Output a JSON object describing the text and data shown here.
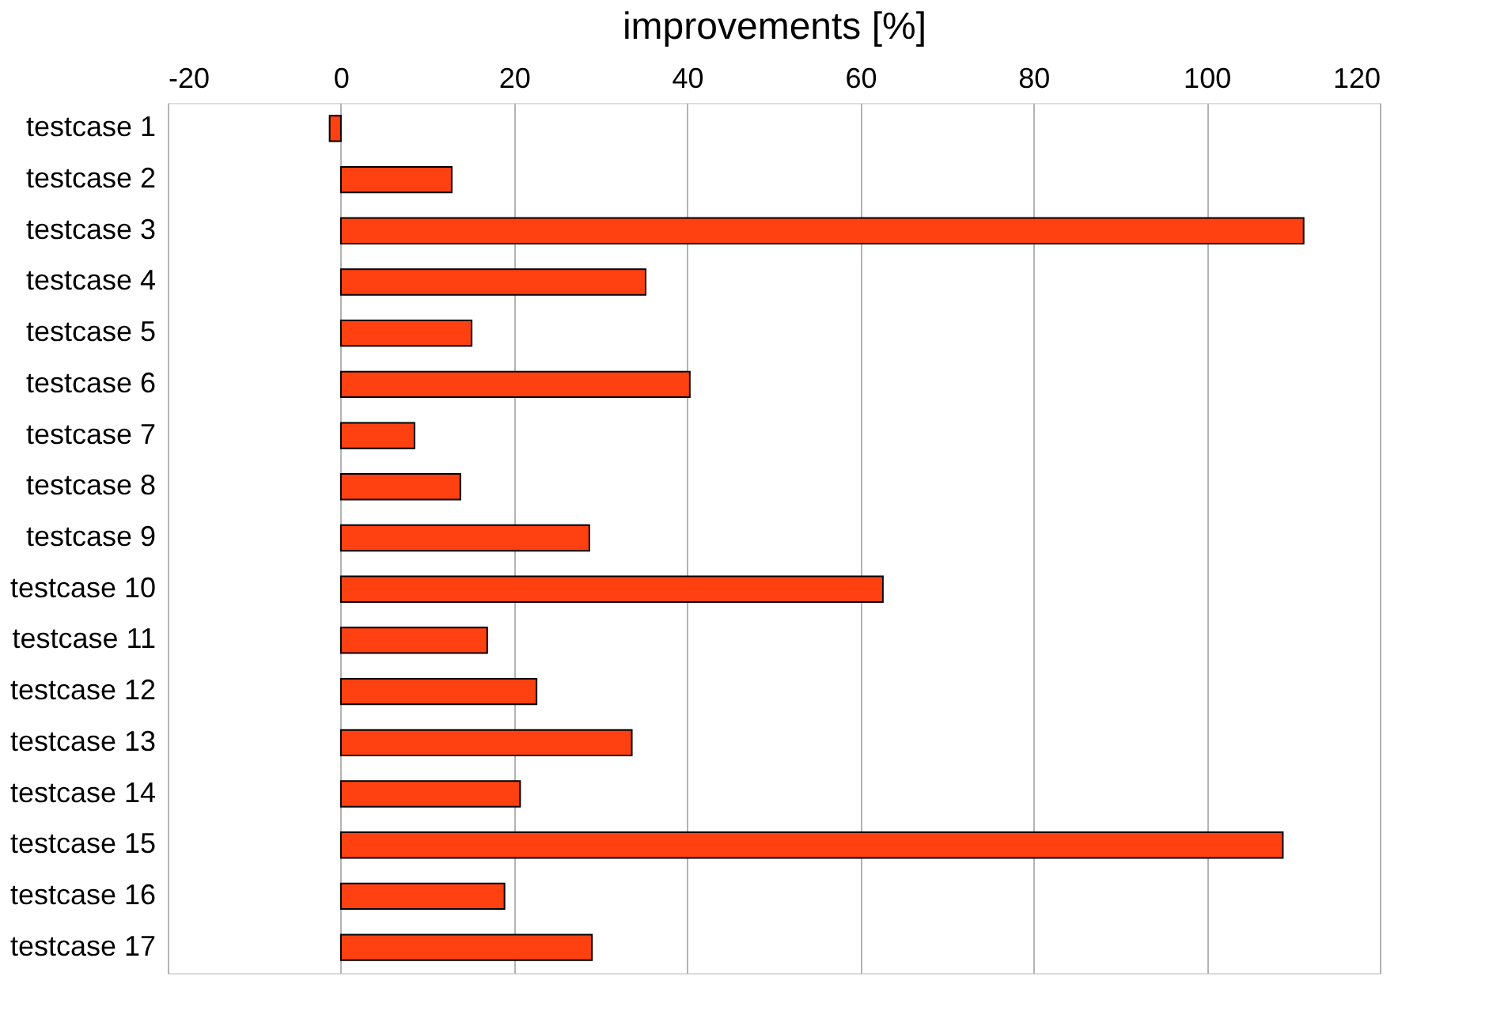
{
  "chart_data": {
    "type": "bar",
    "orientation": "horizontal",
    "xlabel": "improvements  [%]",
    "categories": [
      "testcase 1",
      "testcase 2",
      "testcase 3",
      "testcase 4",
      "testcase 5",
      "testcase 6",
      "testcase 7",
      "testcase 8",
      "testcase 9",
      "testcase 10",
      "testcase 11",
      "testcase 12",
      "testcase 13",
      "testcase 14",
      "testcase 15",
      "testcase 16",
      "testcase 17"
    ],
    "values": [
      -1.3,
      12.8,
      111.2,
      35.2,
      15.1,
      40.3,
      8.5,
      13.8,
      28.7,
      62.6,
      16.9,
      22.6,
      33.6,
      20.7,
      108.8,
      18.9,
      29.0
    ],
    "color": "#ff4010",
    "xlim": [
      -20,
      120
    ],
    "xticks": [
      -20,
      0,
      20,
      40,
      60,
      80,
      100,
      120
    ],
    "grid": "x"
  }
}
